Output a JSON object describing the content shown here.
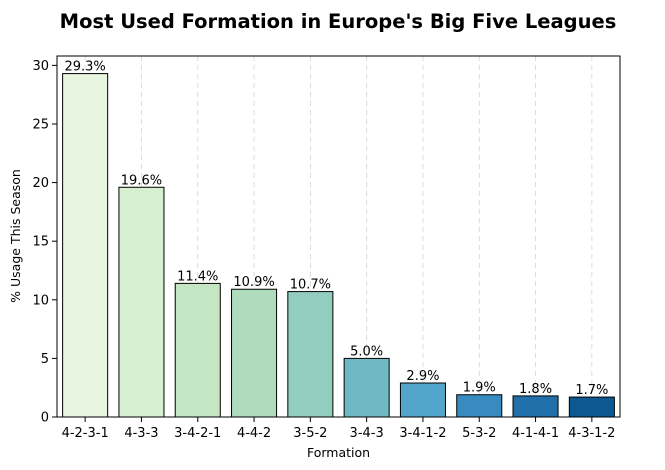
{
  "chart_data": {
    "type": "bar",
    "title": "Most Used Formation in Europe's Big Five Leagues",
    "xlabel": "Formation",
    "ylabel": "% Usage This Season",
    "categories": [
      "4-2-3-1",
      "4-3-3",
      "3-4-2-1",
      "4-4-2",
      "3-5-2",
      "3-4-3",
      "3-4-1-2",
      "5-3-2",
      "4-1-4-1",
      "4-3-1-2"
    ],
    "values": [
      29.3,
      19.6,
      11.4,
      10.9,
      10.7,
      5.0,
      2.9,
      1.9,
      1.8,
      1.7
    ],
    "value_labels": [
      "29.3%",
      "19.6%",
      "11.4%",
      "10.9%",
      "10.7%",
      "5.0%",
      "2.9%",
      "1.9%",
      "1.8%",
      "1.7%"
    ],
    "bar_colors": [
      "#e8f5e1",
      "#d7efd1",
      "#c4e6c3",
      "#aedcbc",
      "#93cdbf",
      "#70b9c4",
      "#52a5cb",
      "#388bbe",
      "#2170ab",
      "#0d5891"
    ],
    "ylim": [
      0,
      30.8
    ],
    "yticks": [
      0,
      5,
      10,
      15,
      20,
      25,
      30
    ],
    "grid": "x-dashed",
    "legend": "none"
  }
}
